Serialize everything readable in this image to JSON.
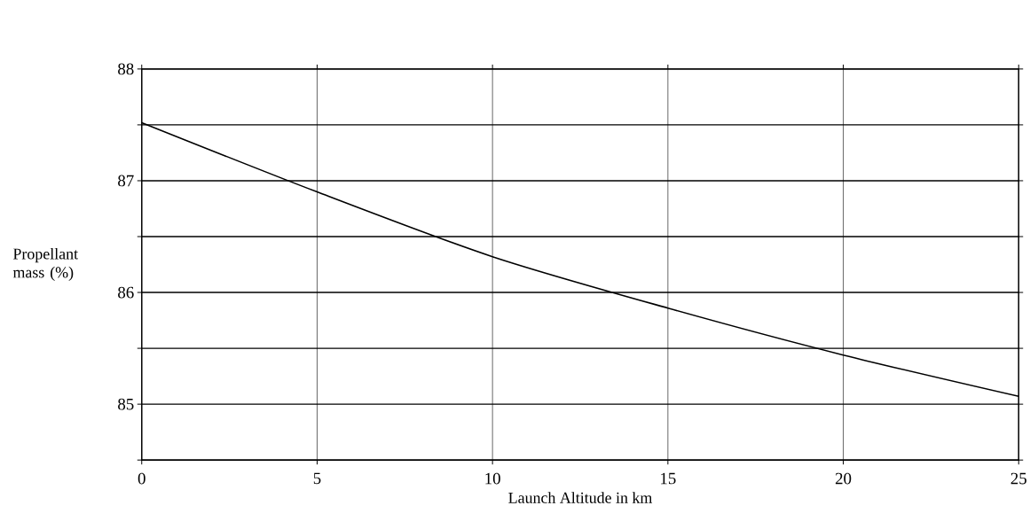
{
  "chart_data": {
    "type": "line",
    "xlabel": "Launch Altitude in km",
    "ylabel": "Propellant mass (%)",
    "x": [
      0,
      5,
      10,
      15,
      20,
      25
    ],
    "series": [
      {
        "color": "#000000",
        "values": [
          87.52,
          86.9,
          86.32,
          85.86,
          85.44,
          85.07
        ]
      }
    ],
    "xlim": [
      0,
      25
    ],
    "ylim": [
      84.5,
      88
    ],
    "xticks": [
      0,
      5,
      10,
      15,
      20,
      25
    ],
    "yticks": [
      {
        "value": 84.5,
        "label": null
      },
      85,
      {
        "value": 85.5,
        "label": null
      },
      86,
      {
        "value": 86.5,
        "label": null
      },
      87,
      {
        "value": 87.5,
        "label": null
      },
      88
    ],
    "grid": true,
    "line_style": "solid"
  }
}
